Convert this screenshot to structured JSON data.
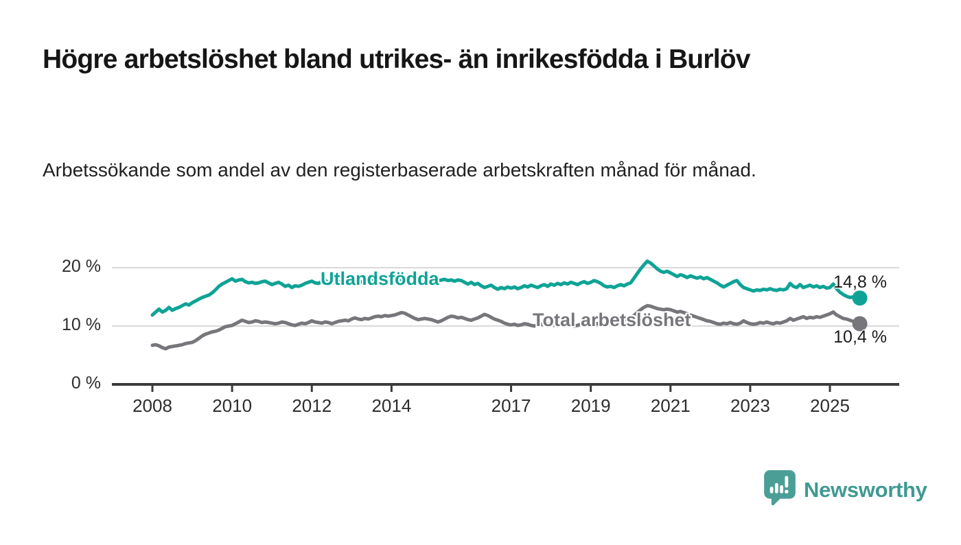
{
  "page": {
    "title": "Högre arbetslöshet bland utrikes- än inrikesfödda i Burlöv",
    "subtitle": "Arbetssökande som andel av den registerbaserade arbetskraften månad för månad."
  },
  "branding": {
    "logo_text": "Newsworthy",
    "logo_icon": "speech-bubble-with-bar-chart",
    "brand_teal": "#4b9e96",
    "wordmark_color": "#3f9a92"
  },
  "colors": {
    "series_utlandsfodda": "#0fa396",
    "series_total": "#76767b",
    "gridline": "#d9d9d9",
    "axis": "#3b3b3b",
    "tick_text": "#2d2d2d",
    "end_label_text": "#1c1c1c"
  },
  "chart_data": {
    "type": "line",
    "title": "Högre arbetslöshet bland utrikes- än inrikesfödda i Burlöv",
    "subtitle": "Arbetssökande som andel av den registerbaserade arbetskraften månad för månad.",
    "x_start_year": 2008,
    "x_interval": "monthly",
    "x_range_years": [
      2008.0,
      2025.75
    ],
    "ylim": [
      0,
      23
    ],
    "grid": "horizontal-only",
    "legend_position": "inline-on-line",
    "xticks": [
      "2008",
      "2010",
      "2012",
      "2014",
      "2017",
      "2019",
      "2021",
      "2023",
      "2025"
    ],
    "yticks": [
      {
        "value": 0,
        "label": "0 %"
      },
      {
        "value": 10,
        "label": "10 %"
      },
      {
        "value": 20,
        "label": "20 %"
      }
    ],
    "series": [
      {
        "name": "Utlandsfödda",
        "inline_label": "Utlandsfödda",
        "end_label": "14,8 %",
        "end_value": 14.8,
        "color": "#0fa396",
        "values": [
          11.9,
          12.4,
          12.9,
          12.4,
          12.7,
          13.2,
          12.7,
          13.0,
          13.2,
          13.5,
          13.8,
          13.6,
          14.0,
          14.3,
          14.6,
          14.9,
          15.1,
          15.3,
          15.7,
          16.2,
          16.8,
          17.2,
          17.5,
          17.8,
          18.1,
          17.7,
          17.9,
          18.0,
          17.6,
          17.4,
          17.5,
          17.3,
          17.4,
          17.6,
          17.7,
          17.4,
          17.1,
          17.3,
          17.5,
          17.2,
          16.8,
          17.0,
          16.6,
          16.9,
          16.8,
          17.0,
          17.3,
          17.5,
          17.7,
          17.4,
          17.3,
          17.6,
          17.8,
          17.5,
          17.3,
          17.5,
          17.7,
          17.4,
          17.6,
          17.5,
          17.3,
          17.2,
          17.4,
          17.6,
          17.8,
          18.0,
          17.8,
          17.6,
          17.7,
          17.5,
          17.6,
          17.8,
          17.6,
          17.4,
          17.6,
          17.8,
          17.7,
          17.5,
          17.3,
          17.5,
          17.6,
          17.4,
          17.5,
          17.7,
          17.6,
          17.8,
          17.7,
          17.9,
          18.0,
          17.8,
          17.9,
          17.7,
          17.9,
          17.8,
          17.5,
          17.2,
          17.5,
          17.1,
          17.3,
          16.9,
          16.6,
          16.8,
          17.0,
          16.6,
          16.3,
          16.6,
          16.4,
          16.7,
          16.5,
          16.7,
          16.4,
          16.6,
          16.9,
          16.7,
          17.0,
          16.8,
          16.6,
          16.9,
          17.1,
          16.8,
          17.2,
          17.0,
          17.3,
          17.1,
          17.4,
          17.2,
          17.5,
          17.3,
          17.1,
          17.4,
          17.6,
          17.3,
          17.5,
          17.8,
          17.6,
          17.3,
          16.9,
          16.7,
          16.8,
          16.6,
          16.9,
          17.1,
          16.9,
          17.2,
          17.4,
          18.2,
          19.0,
          19.8,
          20.5,
          21.1,
          20.8,
          20.3,
          19.8,
          19.4,
          19.2,
          19.4,
          19.1,
          18.8,
          18.5,
          18.8,
          18.6,
          18.3,
          18.6,
          18.4,
          18.2,
          18.4,
          18.1,
          18.3,
          18.0,
          17.7,
          17.4,
          17.0,
          16.7,
          17.0,
          17.3,
          17.6,
          17.8,
          17.1,
          16.6,
          16.4,
          16.2,
          16.0,
          16.2,
          16.1,
          16.3,
          16.2,
          16.4,
          16.2,
          16.1,
          16.3,
          16.2,
          16.4,
          17.3,
          16.8,
          16.6,
          17.1,
          16.6,
          16.8,
          17.0,
          16.7,
          16.9,
          16.6,
          16.8,
          16.5,
          16.6,
          17.2,
          16.4,
          15.8,
          15.4,
          15.1,
          14.9,
          15.0,
          14.9,
          14.8
        ]
      },
      {
        "name": "Total arbetslöshet",
        "inline_label": "Total arbetslöshet",
        "end_label": "10,4 %",
        "end_value": 10.4,
        "color": "#76767b",
        "values": [
          6.7,
          6.8,
          6.6,
          6.3,
          6.1,
          6.4,
          6.5,
          6.6,
          6.7,
          6.8,
          7.0,
          7.1,
          7.2,
          7.5,
          7.9,
          8.3,
          8.6,
          8.8,
          9.0,
          9.1,
          9.3,
          9.6,
          9.9,
          10.0,
          10.1,
          10.4,
          10.7,
          11.0,
          10.8,
          10.6,
          10.7,
          10.9,
          10.8,
          10.6,
          10.7,
          10.6,
          10.5,
          10.4,
          10.5,
          10.7,
          10.6,
          10.4,
          10.2,
          10.1,
          10.3,
          10.5,
          10.4,
          10.6,
          10.9,
          10.7,
          10.6,
          10.5,
          10.7,
          10.6,
          10.4,
          10.6,
          10.8,
          10.9,
          11.0,
          10.9,
          11.2,
          11.4,
          11.2,
          11.1,
          11.3,
          11.2,
          11.4,
          11.6,
          11.7,
          11.6,
          11.8,
          11.7,
          11.8,
          11.9,
          12.1,
          12.3,
          12.2,
          11.9,
          11.6,
          11.3,
          11.1,
          11.2,
          11.3,
          11.2,
          11.1,
          10.9,
          10.7,
          10.9,
          11.2,
          11.5,
          11.7,
          11.6,
          11.4,
          11.5,
          11.3,
          11.1,
          11.0,
          11.2,
          11.4,
          11.7,
          12.0,
          11.8,
          11.5,
          11.2,
          11.0,
          10.8,
          10.5,
          10.3,
          10.2,
          10.3,
          10.1,
          10.2,
          10.4,
          10.3,
          10.1,
          10.0,
          10.2,
          10.3,
          10.2,
          10.4,
          10.3,
          10.1,
          10.0,
          10.2,
          10.1,
          10.3,
          10.2,
          10.0,
          10.1,
          10.3,
          10.2,
          10.4,
          10.3,
          10.5,
          10.4,
          10.2,
          10.4,
          10.6,
          10.5,
          10.7,
          10.6,
          10.8,
          11.0,
          11.2,
          11.4,
          11.8,
          12.3,
          12.8,
          13.2,
          13.5,
          13.4,
          13.2,
          13.0,
          12.9,
          12.8,
          12.9,
          12.8,
          12.6,
          12.4,
          12.5,
          12.3,
          12.1,
          11.9,
          11.7,
          11.5,
          11.3,
          11.1,
          10.9,
          10.8,
          10.6,
          10.4,
          10.3,
          10.5,
          10.4,
          10.6,
          10.4,
          10.3,
          10.5,
          10.9,
          10.6,
          10.4,
          10.3,
          10.4,
          10.6,
          10.5,
          10.7,
          10.5,
          10.4,
          10.6,
          10.5,
          10.7,
          10.9,
          11.3,
          11.0,
          11.2,
          11.4,
          11.6,
          11.3,
          11.5,
          11.4,
          11.6,
          11.5,
          11.7,
          11.9,
          12.1,
          12.4,
          11.9,
          11.6,
          11.3,
          11.2,
          11.0,
          10.8,
          10.6,
          10.4
        ]
      }
    ]
  }
}
